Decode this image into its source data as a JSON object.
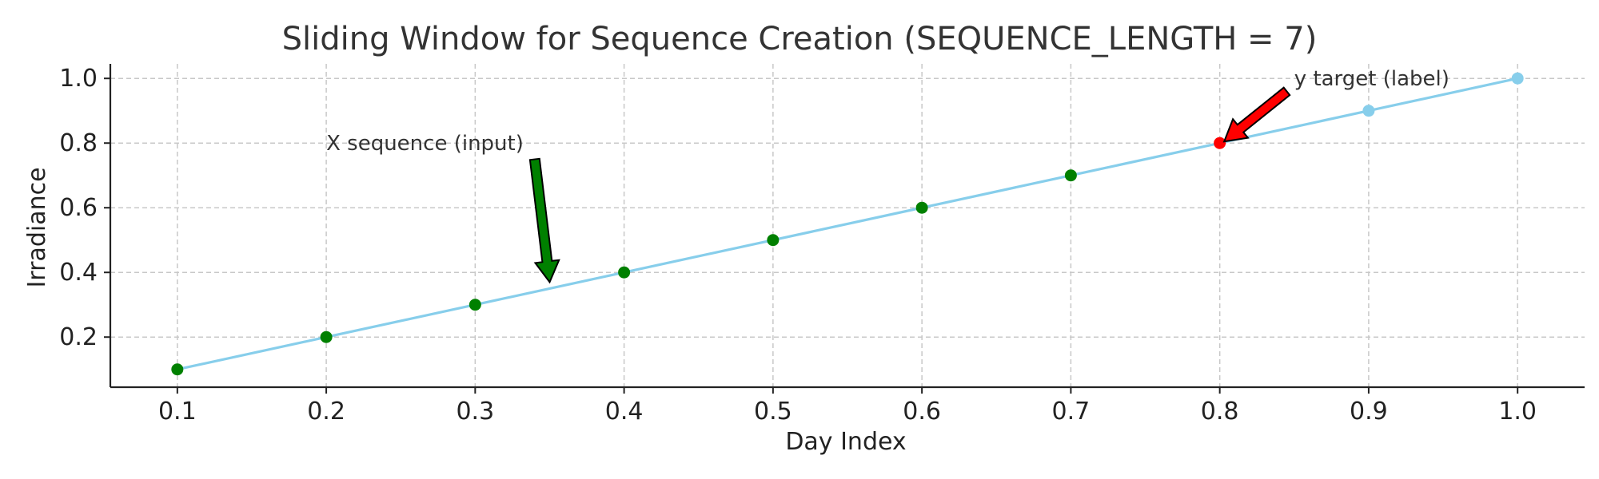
{
  "chart_data": {
    "type": "line",
    "title": "Sliding Window for Sequence Creation (SEQUENCE_LENGTH = 7)",
    "xlabel": "Day Index",
    "ylabel": "Irradiance",
    "xlim": [
      0.055,
      1.045
    ],
    "ylim": [
      0.045,
      1.045
    ],
    "x_ticks": [
      "0.1",
      "0.2",
      "0.3",
      "0.4",
      "0.5",
      "0.6",
      "0.7",
      "0.8",
      "0.9",
      "1.0"
    ],
    "y_ticks": [
      "0.2",
      "0.4",
      "0.6",
      "0.8",
      "1.0"
    ],
    "grid": true,
    "x": [
      0.1,
      0.2,
      0.3,
      0.4,
      0.5,
      0.6,
      0.7,
      0.8,
      0.9,
      1.0
    ],
    "y": [
      0.1,
      0.2,
      0.3,
      0.4,
      0.5,
      0.6,
      0.7,
      0.8,
      0.9,
      1.0
    ],
    "point_roles": [
      "input",
      "input",
      "input",
      "input",
      "input",
      "input",
      "input",
      "target",
      "other",
      "other"
    ],
    "colors": {
      "line": "#87ceeb",
      "input": "#008000",
      "target": "#ff0000",
      "other": "#87ceeb",
      "input_arrow": "#008000",
      "target_arrow": "#ff0000"
    },
    "annotations": [
      {
        "text": "X sequence (input)",
        "text_x": 0.2,
        "text_y": 0.8,
        "arrow_from": [
          0.34,
          0.75
        ],
        "arrow_to": [
          0.35,
          0.37
        ],
        "role": "input"
      },
      {
        "text": "y target (label)",
        "text_x": 0.85,
        "text_y": 1.0,
        "arrow_from": [
          0.845,
          0.96
        ],
        "arrow_to": [
          0.803,
          0.805
        ],
        "role": "target"
      }
    ]
  }
}
